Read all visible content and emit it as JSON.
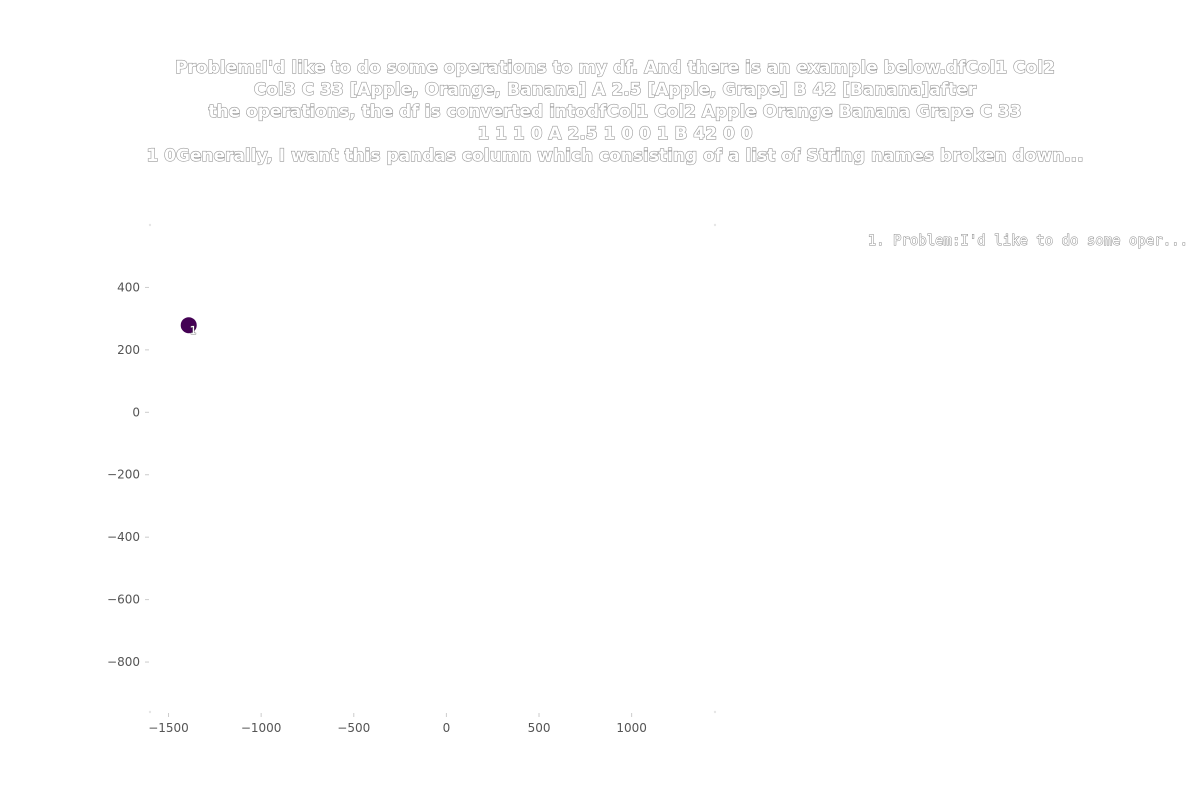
{
  "chart_data": {
    "type": "scatter",
    "title_lines": [
      "Problem:I'd like to do some operations to my df. And there is an example below.dfCol1   Col2",
      "Col3 C      33      [Apple, Orange, Banana] A      2.5    [Apple, Grape]  B      42      [Banana]after",
      "the operations, the df is converted intodfCol1    Col2    Apple    Orange    Banana    Grape C       33",
      "1          1          1          0 A       2.5     1          0          0          1 B       42      0          0",
      "1        0Generally, I want this pandas column which consisting of a list of String names broken down..."
    ],
    "xlim": [
      -1600,
      1450
    ],
    "ylim": [
      -960,
      600
    ],
    "x_ticks": [
      -1500,
      -1000,
      -500,
      0,
      500,
      1000
    ],
    "y_ticks": [
      400,
      200,
      0,
      -200,
      -400,
      -600,
      -800
    ],
    "x_tick_labels": [
      "−1500",
      "−1000",
      "−500",
      "0",
      "500",
      "1000"
    ],
    "y_tick_labels": [
      "400",
      "200",
      "0",
      "−200",
      "−400",
      "−600",
      "−800"
    ],
    "grid": false,
    "legend_position": "top-right",
    "series": [
      {
        "name": "1. Problem:I'd like to do some oper...",
        "color": "#440154",
        "points": [
          {
            "x": -1391,
            "y": 279,
            "label": "1"
          }
        ]
      }
    ]
  }
}
